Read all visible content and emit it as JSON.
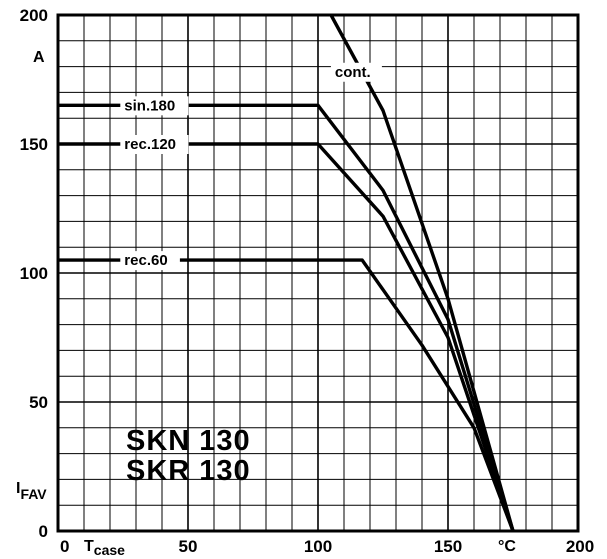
{
  "chart_data": {
    "type": "line",
    "ylabel": "I",
    "ylabel_sub": "FAV",
    "y_unit": "A",
    "xlabel": "T",
    "xlabel_sub": "case",
    "x_unit": "°C",
    "xlim": [
      0,
      200
    ],
    "ylim": [
      0,
      200
    ],
    "x_ticks": [
      "0",
      "50",
      "100",
      "150",
      "200"
    ],
    "y_ticks": [
      "0",
      "50",
      "100",
      "150",
      "200"
    ],
    "grid": true,
    "series": [
      {
        "name": "sin.180",
        "x": [
          0,
          100,
          125,
          150,
          175
        ],
        "y": [
          165,
          165,
          132,
          82,
          0
        ]
      },
      {
        "name": "rec.120",
        "x": [
          0,
          100,
          125,
          150,
          175
        ],
        "y": [
          150,
          150,
          122,
          75,
          0
        ]
      },
      {
        "name": "rec.60",
        "x": [
          0,
          117,
          140,
          160,
          175
        ],
        "y": [
          105,
          105,
          72,
          40,
          0
        ]
      },
      {
        "name": "cont.",
        "x": [
          105,
          125,
          150,
          175
        ],
        "y": [
          200,
          163,
          90,
          0
        ]
      }
    ],
    "annotations": [
      "SKN 130",
      "SKR 130"
    ]
  }
}
